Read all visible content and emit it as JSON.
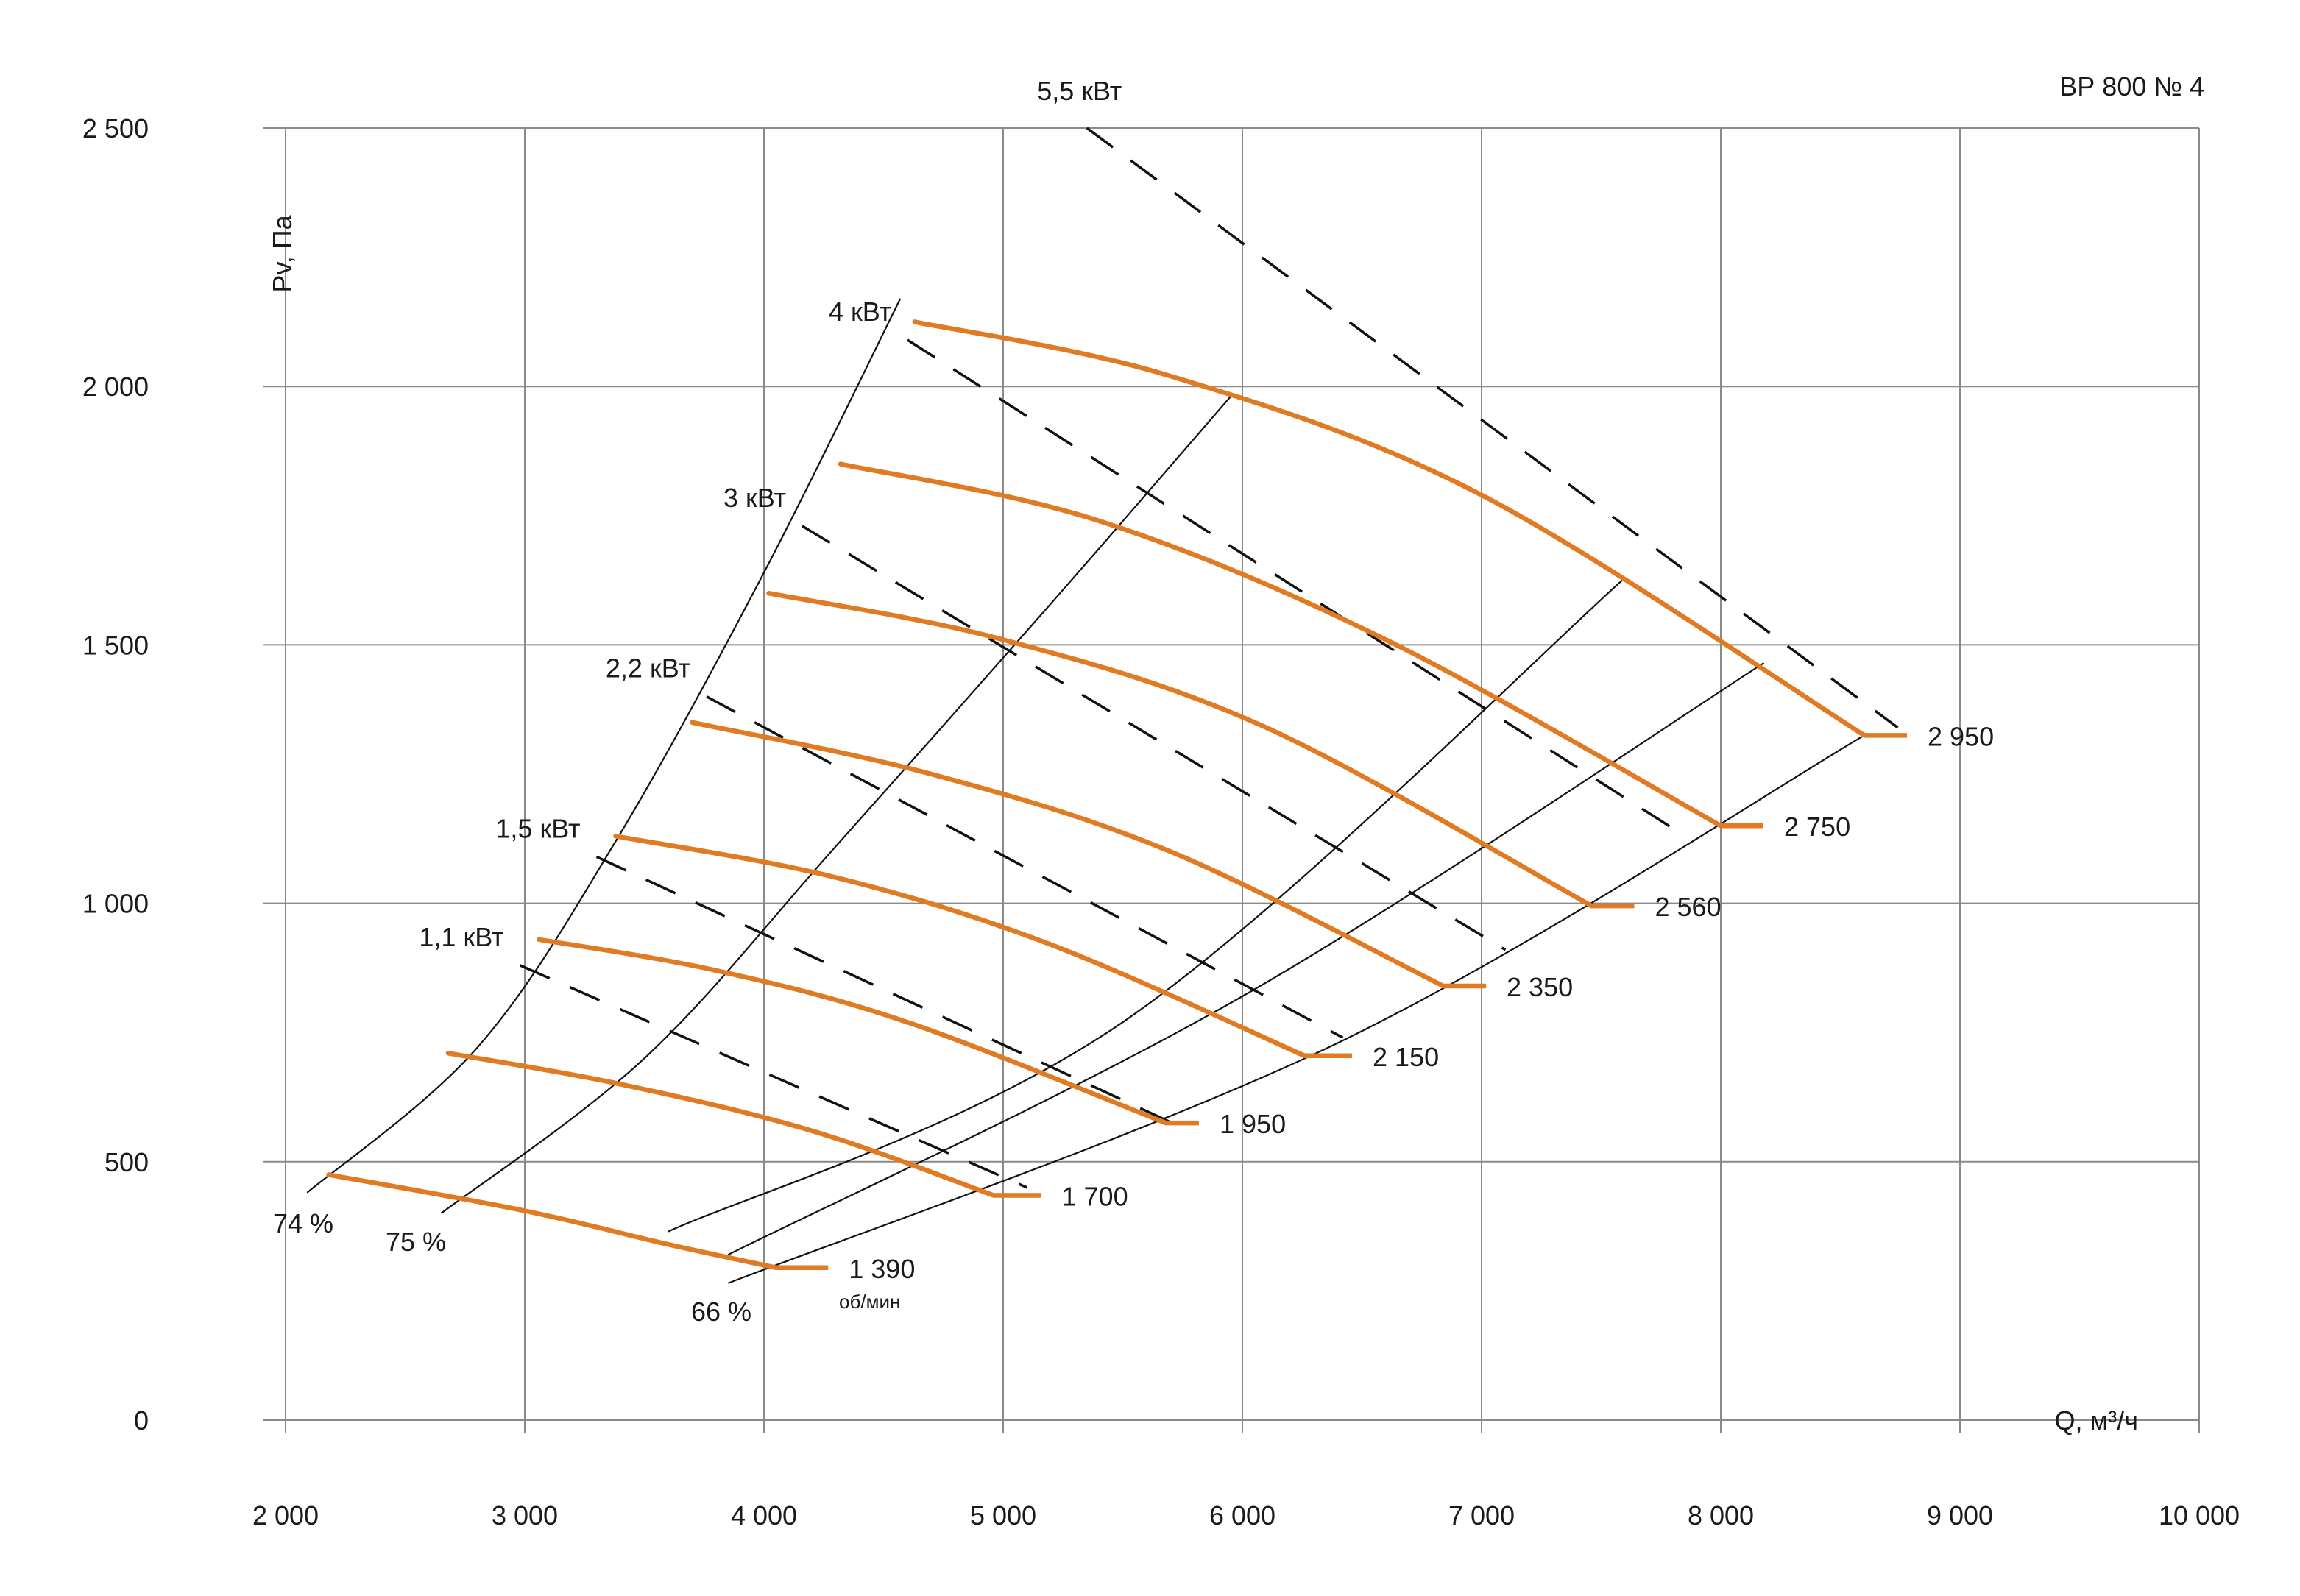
{
  "chart_data": {
    "type": "line",
    "title": "ВР 800 № 4",
    "xlabel": "Q, м³/ч",
    "ylabel": "Pv, Па",
    "xlim": [
      2000,
      10000
    ],
    "ylim": [
      0,
      2500
    ],
    "grid": true,
    "x_ticks": [
      2000,
      3000,
      4000,
      5000,
      6000,
      7000,
      8000,
      9000,
      10000
    ],
    "x_tick_labels": [
      "2 000",
      "3 000",
      "4 000",
      "5 000",
      "6 000",
      "7 000",
      "8 000",
      "9 000",
      "10 000"
    ],
    "y_ticks": [
      0,
      500,
      1000,
      1500,
      2000,
      2500
    ],
    "y_tick_labels": [
      "0",
      "500",
      "1 000",
      "1 500",
      "2 000",
      "2 500"
    ],
    "colors": {
      "speed_curve": "#e07b24",
      "grid": "#8a8a8a",
      "line": "#111111"
    },
    "speed_unit": "об/мин",
    "speed_curves": [
      {
        "name": "1 390",
        "points": [
          [
            2180,
            475
          ],
          [
            3000,
            405
          ],
          [
            3600,
            340
          ],
          [
            4050,
            295
          ]
        ],
        "end_label": {
          "x": 4330,
          "y": 295
        }
      },
      {
        "name": "1 700",
        "points": [
          [
            2680,
            710
          ],
          [
            3400,
            650
          ],
          [
            4200,
            560
          ],
          [
            4960,
            435
          ]
        ],
        "end_label": {
          "x": 5220,
          "y": 435
        }
      },
      {
        "name": "1 950",
        "points": [
          [
            3060,
            930
          ],
          [
            3800,
            870
          ],
          [
            4600,
            770
          ],
          [
            5680,
            575
          ]
        ],
        "end_label": {
          "x": 5880,
          "y": 575
        }
      },
      {
        "name": "2 150",
        "points": [
          [
            3380,
            1130
          ],
          [
            4300,
            1050
          ],
          [
            5200,
            920
          ],
          [
            6260,
            705
          ]
        ],
        "end_label": {
          "x": 6520,
          "y": 705
        }
      },
      {
        "name": "2 350",
        "points": [
          [
            3700,
            1350
          ],
          [
            4700,
            1250
          ],
          [
            5700,
            1100
          ],
          [
            6840,
            840
          ]
        ],
        "end_label": {
          "x": 7080,
          "y": 840
        }
      },
      {
        "name": "2 560",
        "points": [
          [
            4020,
            1600
          ],
          [
            5000,
            1510
          ],
          [
            6100,
            1340
          ],
          [
            7460,
            995
          ]
        ],
        "end_label": {
          "x": 7700,
          "y": 995
        }
      },
      {
        "name": "2 750",
        "points": [
          [
            4320,
            1850
          ],
          [
            5400,
            1740
          ],
          [
            6600,
            1510
          ],
          [
            8000,
            1150
          ]
        ],
        "end_label": {
          "x": 8240,
          "y": 1150
        }
      },
      {
        "name": "2 950",
        "points": [
          [
            4630,
            2125
          ],
          [
            5700,
            2020
          ],
          [
            7000,
            1790
          ],
          [
            8600,
            1325
          ]
        ],
        "end_label": {
          "x": 8840,
          "y": 1325
        }
      }
    ],
    "power_lines": [
      {
        "name": "1,1 кВт",
        "from": [
          2980,
          880
        ],
        "to": [
          5100,
          450
        ]
      },
      {
        "name": "1,5 кВт",
        "from": [
          3300,
          1090
        ],
        "to": [
          5730,
          570
        ]
      },
      {
        "name": "2,2 кВт",
        "from": [
          3760,
          1400
        ],
        "to": [
          6420,
          740
        ]
      },
      {
        "name": "3 кВт",
        "from": [
          4160,
          1730
        ],
        "to": [
          7100,
          910
        ]
      },
      {
        "name": "4 кВт",
        "from": [
          4600,
          2090
        ],
        "to": [
          7850,
          1130
        ]
      },
      {
        "name": "5,5 кВт",
        "from": [
          5350,
          2500
        ],
        "to": [
          8740,
          1340
        ]
      }
    ],
    "efficiency_lines": [
      {
        "name": "74 %",
        "points": [
          [
            2090,
            440
          ],
          [
            2800,
            720
          ],
          [
            3380,
            1120
          ],
          [
            4000,
            1640
          ],
          [
            4570,
            2170
          ]
        ]
      },
      {
        "name": "75 %",
        "points": [
          [
            2650,
            400
          ],
          [
            3500,
            700
          ],
          [
            4300,
            1110
          ],
          [
            5200,
            1580
          ],
          [
            5950,
            1980
          ]
        ]
      },
      {
        "name": "",
        "points": [
          [
            3600,
            365
          ],
          [
            5500,
            770
          ],
          [
            7600,
            1630
          ]
        ]
      },
      {
        "name": "",
        "points": [
          [
            3850,
            320
          ],
          [
            6000,
            820
          ],
          [
            8180,
            1465
          ]
        ]
      },
      {
        "name": "66 %",
        "points": [
          [
            3850,
            265
          ],
          [
            6400,
            730
          ],
          [
            8600,
            1325
          ]
        ]
      }
    ]
  }
}
